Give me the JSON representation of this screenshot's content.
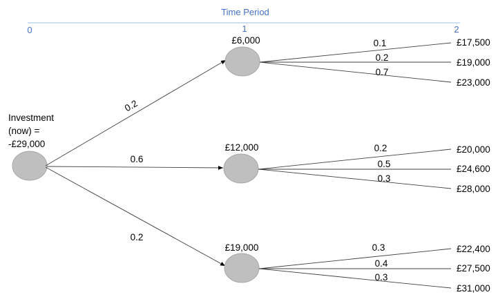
{
  "timeline": {
    "title": "Time Period",
    "ticks": [
      "0",
      "1",
      "2"
    ]
  },
  "root": {
    "label_lines": [
      "Investment",
      "(now) =",
      "-£29,000"
    ]
  },
  "branches": [
    {
      "probability": "0.2",
      "value": "£6,000",
      "outcomes": [
        {
          "probability": "0.1",
          "value": "£17,500"
        },
        {
          "probability": "0.2",
          "value": "£19,000"
        },
        {
          "probability": "0.7",
          "value": "£23,000"
        }
      ]
    },
    {
      "probability": "0.6",
      "value": "£12,000",
      "outcomes": [
        {
          "probability": "0.2",
          "value": "£20,000"
        },
        {
          "probability": "0.5",
          "value": "£24,600"
        },
        {
          "probability": "0.3",
          "value": "£28,000"
        }
      ]
    },
    {
      "probability": "0.2",
      "value": "£19,000",
      "outcomes": [
        {
          "probability": "0.3",
          "value": "£22,400"
        },
        {
          "probability": "0.4",
          "value": "£27,500"
        },
        {
          "probability": "0.3",
          "value": "£31,000"
        }
      ]
    }
  ]
}
